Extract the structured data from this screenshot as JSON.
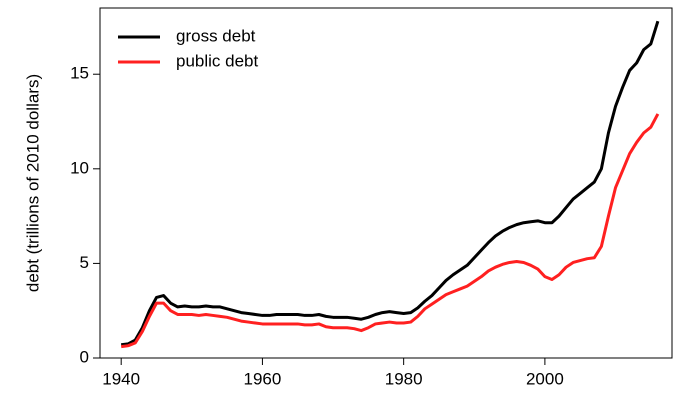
{
  "chart_data": {
    "type": "line",
    "y_label": "debt (trillions of 2010 dollars)",
    "x": [
      1940,
      1941,
      1942,
      1943,
      1944,
      1945,
      1946,
      1947,
      1948,
      1949,
      1950,
      1951,
      1952,
      1953,
      1954,
      1955,
      1956,
      1957,
      1958,
      1959,
      1960,
      1961,
      1962,
      1963,
      1964,
      1965,
      1966,
      1967,
      1968,
      1969,
      1970,
      1971,
      1972,
      1973,
      1974,
      1975,
      1976,
      1977,
      1978,
      1979,
      1980,
      1981,
      1982,
      1983,
      1984,
      1985,
      1986,
      1987,
      1988,
      1989,
      1990,
      1991,
      1992,
      1993,
      1994,
      1995,
      1996,
      1997,
      1998,
      1999,
      2000,
      2001,
      2002,
      2003,
      2004,
      2005,
      2006,
      2007,
      2008,
      2009,
      2010,
      2011,
      2012,
      2013,
      2014,
      2015,
      2016
    ],
    "series": [
      {
        "name": "gross debt",
        "color": "#000000",
        "values": [
          0.7,
          0.75,
          0.95,
          1.6,
          2.5,
          3.2,
          3.3,
          2.9,
          2.7,
          2.75,
          2.7,
          2.7,
          2.75,
          2.7,
          2.7,
          2.6,
          2.5,
          2.4,
          2.35,
          2.3,
          2.25,
          2.25,
          2.3,
          2.3,
          2.3,
          2.3,
          2.25,
          2.25,
          2.3,
          2.2,
          2.15,
          2.15,
          2.15,
          2.1,
          2.05,
          2.15,
          2.3,
          2.4,
          2.45,
          2.4,
          2.35,
          2.4,
          2.65,
          3.0,
          3.3,
          3.7,
          4.1,
          4.4,
          4.65,
          4.9,
          5.3,
          5.7,
          6.1,
          6.45,
          6.7,
          6.9,
          7.05,
          7.15,
          7.2,
          7.25,
          7.15,
          7.15,
          7.5,
          7.95,
          8.4,
          8.7,
          9.0,
          9.3,
          10.0,
          11.9,
          13.3,
          14.3,
          15.2,
          15.6,
          16.3,
          16.6,
          17.8
        ]
      },
      {
        "name": "public debt",
        "color": "#ff2020",
        "values": [
          0.6,
          0.65,
          0.8,
          1.4,
          2.2,
          2.9,
          2.9,
          2.5,
          2.3,
          2.3,
          2.3,
          2.25,
          2.3,
          2.25,
          2.2,
          2.15,
          2.05,
          1.95,
          1.9,
          1.85,
          1.8,
          1.8,
          1.8,
          1.8,
          1.8,
          1.8,
          1.75,
          1.75,
          1.8,
          1.65,
          1.6,
          1.6,
          1.6,
          1.55,
          1.45,
          1.6,
          1.8,
          1.85,
          1.9,
          1.85,
          1.85,
          1.9,
          2.2,
          2.6,
          2.85,
          3.1,
          3.35,
          3.5,
          3.65,
          3.8,
          4.05,
          4.3,
          4.6,
          4.8,
          4.95,
          5.05,
          5.1,
          5.05,
          4.9,
          4.7,
          4.3,
          4.15,
          4.4,
          4.8,
          5.05,
          5.15,
          5.25,
          5.3,
          5.9,
          7.5,
          9.0,
          9.9,
          10.8,
          11.4,
          11.9,
          12.2,
          12.9
        ]
      }
    ],
    "xlim": [
      1937,
      2018
    ],
    "xticks": [
      1940,
      1960,
      1980,
      2000
    ],
    "ylim": [
      0,
      18.5
    ],
    "yticks": [
      0,
      5,
      10,
      15
    ],
    "legend": "top-left",
    "grid": false
  }
}
